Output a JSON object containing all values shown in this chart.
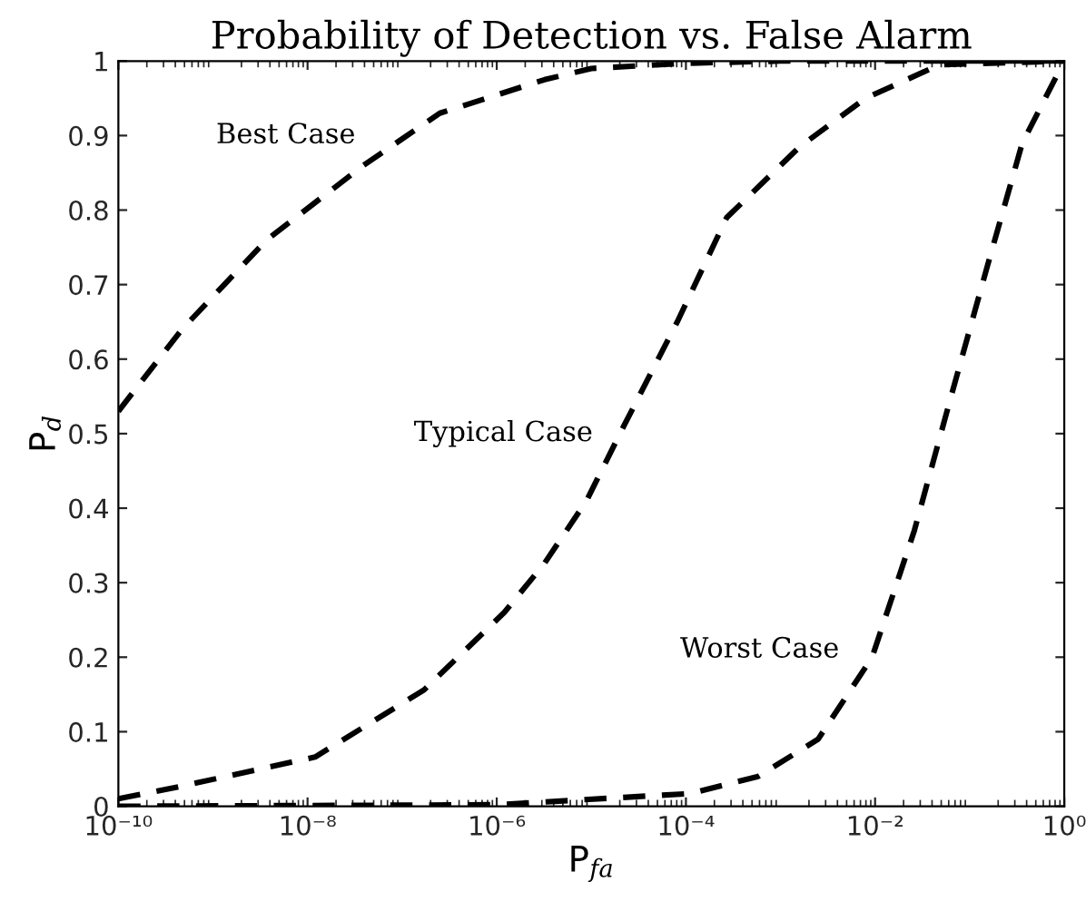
{
  "chart_data": {
    "type": "line",
    "title": "Probability of Detection vs. False Alarm",
    "xlabel": "P$_{fa}$",
    "ylabel": "P$_{d}$",
    "log": "x",
    "line_style": "dashed",
    "marker": "none",
    "grid": false,
    "legend": false,
    "xlim": [
      1e-10,
      1
    ],
    "ylim": [
      0,
      1
    ],
    "xticks": [
      {
        "value": 1e-10,
        "label": "10⁻¹⁰"
      },
      {
        "value": 1e-08,
        "label": "10⁻⁸"
      },
      {
        "value": 1e-06,
        "label": "10⁻⁶"
      },
      {
        "value": 0.0001,
        "label": "10⁻⁴"
      },
      {
        "value": 0.01,
        "label": "10⁻²"
      },
      {
        "value": 1,
        "label": "10⁰"
      }
    ],
    "yticks": [
      0,
      0.1,
      0.2,
      0.3,
      0.4,
      0.5,
      0.6,
      0.7,
      0.8,
      0.9,
      1
    ],
    "series": [
      {
        "name": "Best Case",
        "color": "#000000",
        "x": [
          1e-10,
          4.7e-10,
          3.7e-09,
          3.9e-08,
          2.5e-07,
          3.2e-06,
          1e-05,
          0.0001,
          0.001,
          0.01,
          0.1,
          1
        ],
        "values": [
          0.53,
          0.64,
          0.76,
          0.86,
          0.93,
          0.975,
          0.99,
          0.997,
          1,
          1,
          1,
          1
        ]
      },
      {
        "name": "Typical Case",
        "color": "#000000",
        "x": [
          1e-10,
          4.7e-10,
          1.2e-08,
          1.7e-07,
          1.2e-06,
          3.2e-06,
          8.9e-06,
          2.2e-05,
          8.1e-05,
          0.00027,
          0.0016,
          0.0079,
          0.048,
          1
        ],
        "values": [
          0.01,
          0.027,
          0.066,
          0.156,
          0.26,
          0.326,
          0.41,
          0.51,
          0.65,
          0.79,
          0.885,
          0.95,
          0.995,
          1
        ]
      },
      {
        "name": "Worst Case",
        "color": "#000000",
        "x": [
          1e-10,
          1e-06,
          0.00011,
          0.00058,
          0.0025,
          0.0093,
          0.026,
          0.062,
          0.15,
          0.36,
          1
        ],
        "values": [
          0,
          0.002,
          0.017,
          0.04,
          0.09,
          0.2,
          0.37,
          0.545,
          0.72,
          0.89,
          1
        ]
      }
    ]
  }
}
